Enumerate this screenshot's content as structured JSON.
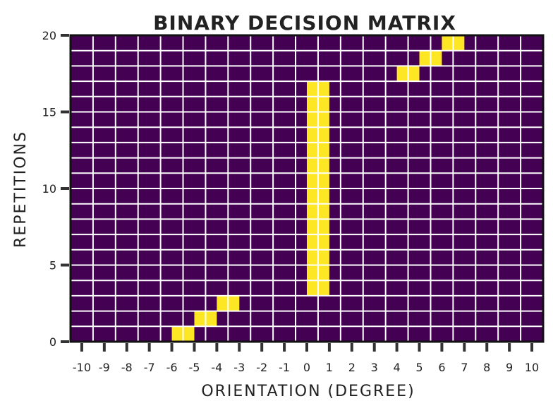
{
  "chart_data": {
    "type": "heatmap",
    "title": "BINARY DECISION MATRIX",
    "xlabel": "ORIENTATION (DEGREE)",
    "ylabel": "REPETITIONS",
    "x_ticks": [
      "-10",
      "-9",
      "-8",
      "-7",
      "-6",
      "-5",
      "-4",
      "-3",
      "-2",
      "-1",
      "0",
      "1",
      "2",
      "3",
      "4",
      "5",
      "6",
      "7",
      "8",
      "9",
      "10"
    ],
    "y_ticks": [
      "0",
      "5",
      "10",
      "15",
      "20"
    ],
    "ylim": [
      0,
      20
    ],
    "grid": true,
    "colors": {
      "off": "#440154",
      "on": "#fde725",
      "grid": "#ffffff"
    },
    "cells_on": [
      {
        "x": -5.5,
        "y": 0
      },
      {
        "x": -4.5,
        "y": 1
      },
      {
        "x": -3.5,
        "y": 2
      },
      {
        "x": 0.5,
        "y": 3
      },
      {
        "x": 0.5,
        "y": 4
      },
      {
        "x": 0.5,
        "y": 5
      },
      {
        "x": 0.5,
        "y": 6
      },
      {
        "x": 0.5,
        "y": 7
      },
      {
        "x": 0.5,
        "y": 8
      },
      {
        "x": 0.5,
        "y": 9
      },
      {
        "x": 0.5,
        "y": 10
      },
      {
        "x": 0.5,
        "y": 11
      },
      {
        "x": 0.5,
        "y": 12
      },
      {
        "x": 0.5,
        "y": 13
      },
      {
        "x": 0.5,
        "y": 14
      },
      {
        "x": 0.5,
        "y": 15
      },
      {
        "x": 0.5,
        "y": 16
      },
      {
        "x": 4.5,
        "y": 17
      },
      {
        "x": 5.5,
        "y": 18
      },
      {
        "x": 6.5,
        "y": 19
      }
    ]
  }
}
